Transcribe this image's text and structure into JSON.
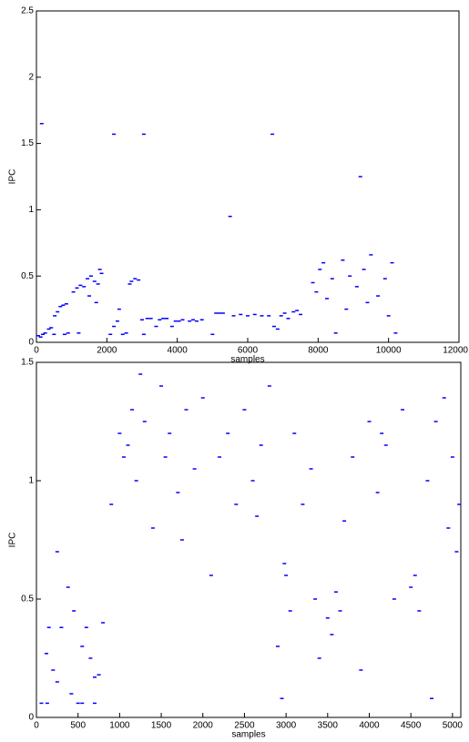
{
  "chart_data": [
    {
      "type": "scatter",
      "xlabel": "samples",
      "ylabel": "IPC",
      "color": "#0000ff",
      "xlim": [
        0,
        12000
      ],
      "xticks": [
        0,
        2000,
        4000,
        6000,
        8000,
        10000,
        12000
      ],
      "ylim": [
        0,
        2.5
      ],
      "yticks": [
        0,
        0.5,
        1,
        1.5,
        2,
        2.5
      ],
      "x": [
        50,
        120,
        180,
        250,
        350,
        420,
        520,
        600,
        680,
        760,
        850,
        900,
        1050,
        1150,
        1250,
        1350,
        1450,
        1550,
        1650,
        1750,
        1850,
        1500,
        1700,
        1800,
        500,
        800,
        1200,
        2100,
        2200,
        2300,
        2350,
        2450,
        2550,
        2650,
        2700,
        2800,
        2900,
        3000,
        3050,
        3150,
        3250,
        3400,
        3500,
        3600,
        3700,
        3850,
        3950,
        4050,
        4150,
        4350,
        4450,
        4550,
        4700,
        5000,
        5100,
        5200,
        5300,
        5600,
        5800,
        6000,
        6200,
        6400,
        6600,
        6750,
        6850,
        6950,
        7050,
        7150,
        7300,
        7400,
        7500,
        7850,
        7950,
        8050,
        8150,
        8250,
        8400,
        8500,
        8700,
        8900,
        9100,
        9300,
        9500,
        9700,
        9900,
        10100,
        10200,
        8800,
        9400,
        10000,
        150,
        2200,
        3050,
        5500,
        6700,
        9200
      ],
      "values": [
        0.05,
        0.04,
        0.06,
        0.07,
        0.1,
        0.11,
        0.2,
        0.23,
        0.27,
        0.28,
        0.29,
        0.07,
        0.38,
        0.41,
        0.43,
        0.42,
        0.48,
        0.5,
        0.46,
        0.44,
        0.52,
        0.35,
        0.3,
        0.55,
        0.06,
        0.06,
        0.07,
        0.06,
        0.12,
        0.16,
        0.25,
        0.06,
        0.07,
        0.44,
        0.46,
        0.48,
        0.47,
        0.17,
        0.06,
        0.18,
        0.18,
        0.12,
        0.17,
        0.18,
        0.18,
        0.12,
        0.16,
        0.16,
        0.17,
        0.16,
        0.17,
        0.16,
        0.17,
        0.06,
        0.22,
        0.22,
        0.22,
        0.2,
        0.21,
        0.2,
        0.21,
        0.2,
        0.2,
        0.12,
        0.1,
        0.2,
        0.22,
        0.18,
        0.23,
        0.24,
        0.21,
        0.45,
        0.38,
        0.55,
        0.6,
        0.33,
        0.48,
        0.07,
        0.62,
        0.5,
        0.42,
        0.55,
        0.66,
        0.35,
        0.48,
        0.6,
        0.07,
        0.25,
        0.3,
        0.2,
        1.65,
        1.57,
        1.57,
        0.95,
        1.57,
        1.25
      ]
    },
    {
      "type": "scatter",
      "xlabel": "samples",
      "ylabel": "IPC",
      "color": "#0000ff",
      "xlim": [
        0,
        5100
      ],
      "xticks": [
        0,
        500,
        1000,
        1500,
        2000,
        2500,
        3000,
        3500,
        4000,
        4500,
        5000
      ],
      "ylim": [
        0,
        1.5
      ],
      "yticks": [
        0,
        0.5,
        1,
        1.5
      ],
      "x": [
        60,
        120,
        150,
        200,
        250,
        300,
        380,
        420,
        500,
        550,
        600,
        650,
        700,
        750,
        800,
        900,
        1000,
        1050,
        1100,
        1150,
        1200,
        1300,
        1400,
        1500,
        1550,
        1600,
        1700,
        1800,
        1900,
        2000,
        2100,
        2200,
        2300,
        2400,
        2500,
        2600,
        2700,
        2800,
        2900,
        2950,
        3000,
        3050,
        3100,
        3200,
        3300,
        3400,
        3500,
        3550,
        3600,
        3700,
        3800,
        3900,
        4000,
        4100,
        4200,
        4300,
        4400,
        4500,
        4550,
        4600,
        4700,
        4800,
        4900,
        4950,
        5000,
        5050,
        130,
        550,
        250,
        3650,
        2980,
        1750,
        2650,
        4150,
        3350,
        1250,
        4750,
        450,
        5080,
        700
      ],
      "values": [
        0.06,
        0.27,
        0.38,
        0.2,
        0.15,
        0.38,
        0.55,
        0.1,
        0.06,
        0.3,
        0.38,
        0.25,
        0.06,
        0.18,
        0.4,
        0.9,
        1.2,
        1.1,
        1.15,
        1.3,
        1.0,
        1.25,
        0.8,
        1.4,
        1.1,
        1.2,
        0.95,
        1.3,
        1.05,
        1.35,
        0.6,
        1.1,
        1.2,
        0.9,
        1.3,
        1.0,
        1.15,
        1.4,
        0.3,
        0.08,
        0.6,
        0.45,
        1.2,
        0.9,
        1.05,
        0.25,
        0.42,
        0.35,
        0.53,
        0.83,
        1.1,
        0.2,
        1.25,
        0.95,
        1.15,
        0.5,
        1.3,
        0.55,
        0.6,
        0.45,
        1.0,
        1.25,
        1.35,
        0.8,
        1.1,
        0.7,
        0.06,
        0.06,
        0.7,
        0.45,
        0.65,
        0.75,
        0.85,
        1.2,
        0.5,
        1.45,
        0.08,
        0.45,
        0.9,
        0.17
      ]
    }
  ]
}
